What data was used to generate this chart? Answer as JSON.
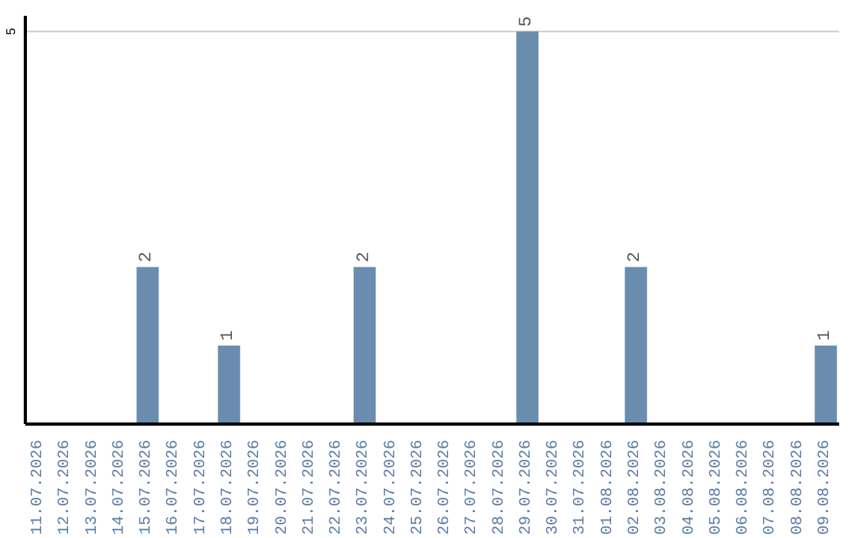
{
  "chart_data": {
    "type": "bar",
    "categories": [
      "11.07.2026",
      "12.07.2026",
      "13.07.2026",
      "14.07.2026",
      "15.07.2026",
      "16.07.2026",
      "17.07.2026",
      "18.07.2026",
      "19.07.2026",
      "20.07.2026",
      "21.07.2026",
      "22.07.2026",
      "23.07.2026",
      "24.07.2026",
      "25.07.2026",
      "26.07.2026",
      "27.07.2026",
      "28.07.2026",
      "29.07.2026",
      "30.07.2026",
      "31.07.2026",
      "01.08.2026",
      "02.08.2026",
      "03.08.2026",
      "04.08.2026",
      "05.08.2026",
      "06.08.2026",
      "07.08.2026",
      "08.08.2026",
      "09.08.2026"
    ],
    "values": [
      0,
      0,
      0,
      0,
      2,
      0,
      0,
      1,
      0,
      0,
      0,
      0,
      2,
      0,
      0,
      0,
      0,
      0,
      5,
      0,
      0,
      0,
      2,
      0,
      0,
      0,
      0,
      0,
      0,
      1
    ],
    "value_labels": [
      null,
      null,
      null,
      null,
      "2",
      null,
      null,
      "1",
      null,
      null,
      null,
      null,
      "2",
      null,
      null,
      null,
      null,
      null,
      "5",
      null,
      null,
      null,
      "2",
      null,
      null,
      null,
      null,
      null,
      null,
      "1"
    ],
    "color": "#6a8caf",
    "ylim": [
      0,
      5.2
    ],
    "yticks": [
      5
    ],
    "grid": "y"
  }
}
